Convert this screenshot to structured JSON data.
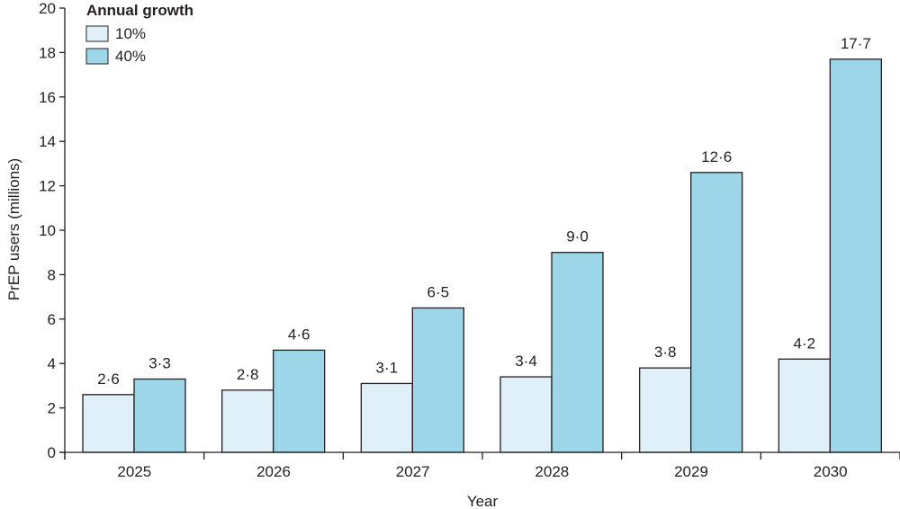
{
  "chart_data": {
    "type": "bar",
    "categories": [
      "2025",
      "2026",
      "2027",
      "2028",
      "2029",
      "2030"
    ],
    "series": [
      {
        "name": "10%",
        "color": "#dff0f8",
        "values": [
          2.6,
          2.8,
          3.1,
          3.4,
          3.8,
          4.2
        ],
        "labels": [
          "2·6",
          "2·8",
          "3·1",
          "3·4",
          "3·8",
          "4·2"
        ]
      },
      {
        "name": "40%",
        "color": "#9dd5e9",
        "values": [
          3.3,
          4.6,
          6.5,
          9.0,
          12.6,
          17.7
        ],
        "labels": [
          "3·3",
          "4·6",
          "6·5",
          "9·0",
          "12·6",
          "17·7"
        ]
      }
    ],
    "xlabel": "Year",
    "ylabel": "PrEP users (millions)",
    "ylim": [
      0,
      20
    ],
    "yticks": [
      0,
      2,
      4,
      6,
      8,
      10,
      12,
      14,
      16,
      18,
      20
    ],
    "legend": {
      "title": "Annual growth",
      "position": "top-left"
    },
    "grid": false,
    "bar_edge_color": "#231f20"
  }
}
